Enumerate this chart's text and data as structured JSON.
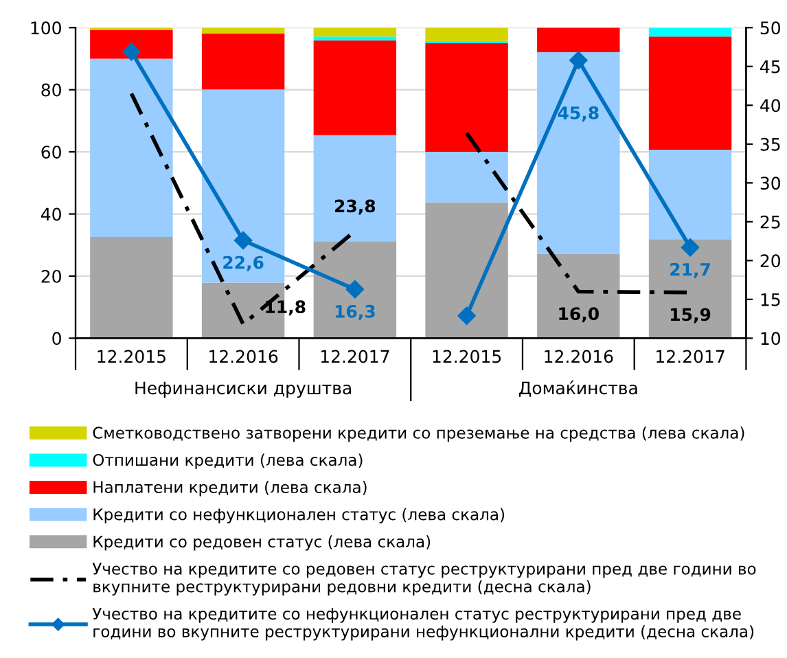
{
  "chart_data": {
    "type": "bar",
    "stacked": true,
    "categories": [
      "12.2015",
      "12.2016",
      "12.2017",
      "12.2015",
      "12.2016",
      "12.2017"
    ],
    "annotations": [
      "Нефинансиски друштва",
      "Домаќинства"
    ],
    "series": [
      {
        "name": "Кредити со редовен статус (лева скала)",
        "color": "#a6a6a6",
        "values": [
          32.6,
          17.9,
          31.2,
          43.7,
          27.1,
          31.9
        ]
      },
      {
        "name": "Кредити со нефункционален статус (лева скала)",
        "color": "#99ccff",
        "values": [
          57.4,
          62.2,
          34.2,
          16.3,
          65.0,
          28.8
        ]
      },
      {
        "name": "Наплатени кредити (лева скала)",
        "color": "#ff0000",
        "values": [
          9.3,
          18.1,
          30.5,
          35.0,
          7.9,
          36.4
        ]
      },
      {
        "name": "Отпишани кредити (лева скала)",
        "color": "#00ffff",
        "values": [
          0,
          0,
          1.2,
          0.7,
          0,
          2.9
        ]
      },
      {
        "name": "Сметководствено затворени кредити со преземање на средства (лева скала)",
        "color": "#d4d400",
        "values": [
          0.7,
          1.8,
          2.9,
          4.3,
          0,
          0
        ]
      },
      {
        "name": "Учество на кредитите со редовен статус реструктурирани пред две години во\nвкупните реструктурирани редовни кредити (десна скала)",
        "type": "line",
        "axis": "y2",
        "color": "#000000",
        "line_style": "dashdot",
        "marker": "none",
        "values": [
          41.5,
          11.8,
          23.8,
          null,
          null,
          null
        ],
        "value_labels": [
          null,
          "11,8",
          "23,8",
          null,
          null,
          null
        ]
      },
      {
        "type": "line",
        "axis": "y2",
        "color": "#000000",
        "line_style": "dashdot",
        "marker": "none",
        "values": [
          null,
          null,
          null,
          36.4,
          16.0,
          15.9
        ],
        "value_labels": [
          null,
          null,
          null,
          null,
          "16,0",
          "15,9"
        ]
      },
      {
        "name": "Учество на кредитите со нефункционален статус реструктурирани пред две\nгодини во вкупните реструктурирани нефункционални кредити (десна скала)",
        "type": "line",
        "axis": "y2",
        "color": "#0070c0",
        "line_style": "solid",
        "marker": "diamond",
        "values": [
          46.9,
          22.6,
          16.3,
          null,
          null,
          null
        ],
        "value_labels": [
          null,
          "22,6",
          "16,3",
          null,
          null,
          null
        ]
      },
      {
        "type": "line",
        "axis": "y2",
        "color": "#0070c0",
        "line_style": "solid",
        "marker": "diamond",
        "values": [
          null,
          null,
          null,
          12.9,
          45.8,
          21.7
        ],
        "value_labels": [
          null,
          null,
          null,
          null,
          "45,8",
          "21,7"
        ]
      }
    ],
    "ylim": [
      0,
      100
    ],
    "yticks": [
      0,
      20,
      40,
      60,
      80,
      100
    ],
    "y2lim": [
      10,
      50
    ],
    "y2ticks": [
      10,
      15,
      20,
      25,
      30,
      35,
      40,
      45,
      50
    ],
    "grid": "y",
    "legend": "bottom"
  }
}
